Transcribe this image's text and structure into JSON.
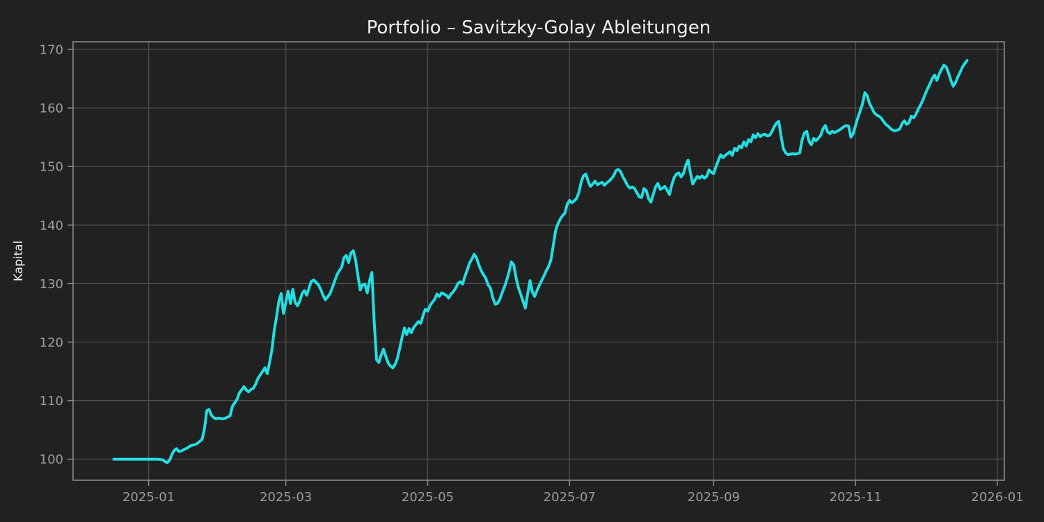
{
  "chart_data": {
    "type": "line",
    "title": "Portfolio – Savitzky-Golay Ableitungen",
    "ylabel": "Kapital",
    "xlabel": "",
    "series_name": "Kapital",
    "grid": true,
    "legend": "none",
    "colors": {
      "background": "#212121",
      "line": "#21dfe3",
      "grid": "#4e4e4e",
      "spine": "#8c8c8c",
      "tick_text": "#9c9c9c",
      "title_text": "#f0f0f0"
    },
    "x_epoch": "2025-01-01",
    "x_unit": "days_since_epoch",
    "x_domain": [
      -32.5,
      368
    ],
    "y_domain": [
      96.4,
      171.3
    ],
    "x_ticks": [
      {
        "day": 0,
        "label": "2025-01"
      },
      {
        "day": 59,
        "label": "2025-03"
      },
      {
        "day": 120,
        "label": "2025-05"
      },
      {
        "day": 181,
        "label": "2025-07"
      },
      {
        "day": 243,
        "label": "2025-09"
      },
      {
        "day": 304,
        "label": "2025-11"
      },
      {
        "day": 365,
        "label": "2026-01"
      }
    ],
    "y_ticks": [
      100,
      110,
      120,
      130,
      140,
      150,
      160,
      170
    ],
    "points": [
      [
        -15,
        100
      ],
      [
        -13,
        100
      ],
      [
        -10,
        100
      ],
      [
        -7,
        100
      ],
      [
        -4,
        100
      ],
      [
        -1,
        100
      ],
      [
        2,
        100
      ],
      [
        4,
        100
      ],
      [
        6,
        99.9
      ],
      [
        7,
        99.6
      ],
      [
        8,
        99.4
      ],
      [
        9,
        99.8
      ],
      [
        10,
        100.8
      ],
      [
        11,
        101.5
      ],
      [
        12,
        101.8
      ],
      [
        13,
        101.3
      ],
      [
        14,
        101.4
      ],
      [
        15,
        101.6
      ],
      [
        17,
        102.0
      ],
      [
        18,
        102.3
      ],
      [
        20,
        102.5
      ],
      [
        21,
        102.7
      ],
      [
        23,
        103.4
      ],
      [
        24,
        105.2
      ],
      [
        25,
        108.3
      ],
      [
        26,
        108.5
      ],
      [
        27,
        107.5
      ],
      [
        28,
        107.1
      ],
      [
        29,
        106.9
      ],
      [
        30,
        107.0
      ],
      [
        32,
        106.9
      ],
      [
        33,
        107.0
      ],
      [
        35,
        107.4
      ],
      [
        36,
        109.0
      ],
      [
        38,
        110.2
      ],
      [
        39,
        111.3
      ],
      [
        41,
        112.4
      ],
      [
        42,
        111.8
      ],
      [
        43,
        111.5
      ],
      [
        44,
        111.9
      ],
      [
        45,
        112.1
      ],
      [
        46,
        112.8
      ],
      [
        47,
        113.8
      ],
      [
        49,
        115.0
      ],
      [
        50,
        115.6
      ],
      [
        51,
        114.6
      ],
      [
        52,
        116.5
      ],
      [
        53,
        118.6
      ],
      [
        54,
        122.0
      ],
      [
        55,
        124.3
      ],
      [
        56,
        127.0
      ],
      [
        57,
        128.3
      ],
      [
        58,
        124.9
      ],
      [
        59,
        126.8
      ],
      [
        60,
        128.7
      ],
      [
        61,
        126.6
      ],
      [
        62,
        129.0
      ],
      [
        63,
        126.8
      ],
      [
        64,
        126.2
      ],
      [
        65,
        127.0
      ],
      [
        66,
        128.3
      ],
      [
        67,
        128.8
      ],
      [
        68,
        128.0
      ],
      [
        69,
        129.3
      ],
      [
        70,
        130.4
      ],
      [
        71,
        130.6
      ],
      [
        72,
        130.2
      ],
      [
        73,
        129.8
      ],
      [
        74,
        129.0
      ],
      [
        75,
        128.0
      ],
      [
        76,
        127.2
      ],
      [
        77,
        127.7
      ],
      [
        78,
        128.3
      ],
      [
        79,
        129.3
      ],
      [
        80,
        130.4
      ],
      [
        81,
        131.5
      ],
      [
        82,
        132.2
      ],
      [
        83,
        132.8
      ],
      [
        84,
        134.4
      ],
      [
        85,
        134.8
      ],
      [
        86,
        133.6
      ],
      [
        87,
        135.2
      ],
      [
        88,
        135.6
      ],
      [
        89,
        134.0
      ],
      [
        90,
        131.3
      ],
      [
        91,
        128.9
      ],
      [
        92,
        129.8
      ],
      [
        93,
        129.9
      ],
      [
        94,
        128.4
      ],
      [
        95,
        130.5
      ],
      [
        96,
        131.9
      ],
      [
        97,
        123.5
      ],
      [
        98,
        117.0
      ],
      [
        99,
        116.5
      ],
      [
        100,
        117.8
      ],
      [
        101,
        118.8
      ],
      [
        102,
        117.6
      ],
      [
        103,
        116.4
      ],
      [
        104,
        115.9
      ],
      [
        105,
        115.6
      ],
      [
        106,
        116.2
      ],
      [
        107,
        117.2
      ],
      [
        108,
        119.0
      ],
      [
        109,
        120.8
      ],
      [
        110,
        122.4
      ],
      [
        111,
        121.3
      ],
      [
        112,
        122.3
      ],
      [
        113,
        121.6
      ],
      [
        114,
        122.5
      ],
      [
        115,
        123.0
      ],
      [
        116,
        123.5
      ],
      [
        117,
        123.2
      ],
      [
        118,
        124.5
      ],
      [
        119,
        125.6
      ],
      [
        120,
        125.3
      ],
      [
        121,
        126.2
      ],
      [
        122,
        126.8
      ],
      [
        123,
        127.3
      ],
      [
        124,
        128.2
      ],
      [
        125,
        127.8
      ],
      [
        126,
        128.4
      ],
      [
        127,
        128.2
      ],
      [
        128,
        128.0
      ],
      [
        129,
        127.5
      ],
      [
        130,
        128.2
      ],
      [
        131,
        128.6
      ],
      [
        132,
        129.2
      ],
      [
        133,
        130.0
      ],
      [
        134,
        130.3
      ],
      [
        135,
        129.9
      ],
      [
        136,
        131.2
      ],
      [
        137,
        132.3
      ],
      [
        138,
        133.5
      ],
      [
        139,
        134.2
      ],
      [
        140,
        135.0
      ],
      [
        141,
        134.4
      ],
      [
        142,
        133.2
      ],
      [
        143,
        132.2
      ],
      [
        144,
        131.5
      ],
      [
        145,
        130.9
      ],
      [
        146,
        129.8
      ],
      [
        147,
        129.2
      ],
      [
        148,
        127.6
      ],
      [
        149,
        126.5
      ],
      [
        150,
        126.6
      ],
      [
        151,
        127.3
      ],
      [
        152,
        128.4
      ],
      [
        153,
        129.4
      ],
      [
        154,
        130.6
      ],
      [
        155,
        132.0
      ],
      [
        156,
        133.7
      ],
      [
        157,
        133.2
      ],
      [
        158,
        131.0
      ],
      [
        159,
        129.3
      ],
      [
        160,
        128.2
      ],
      [
        161,
        127.0
      ],
      [
        162,
        125.8
      ],
      [
        163,
        128.2
      ],
      [
        164,
        130.5
      ],
      [
        165,
        128.6
      ],
      [
        166,
        127.8
      ],
      [
        167,
        128.8
      ],
      [
        168,
        129.7
      ],
      [
        169,
        130.5
      ],
      [
        170,
        131.3
      ],
      [
        171,
        132.2
      ],
      [
        172,
        132.9
      ],
      [
        173,
        134.0
      ],
      [
        174,
        136.5
      ],
      [
        175,
        139.0
      ],
      [
        176,
        140.2
      ],
      [
        177,
        141.0
      ],
      [
        178,
        141.6
      ],
      [
        179,
        142.0
      ],
      [
        180,
        143.5
      ],
      [
        181,
        144.2
      ],
      [
        182,
        143.8
      ],
      [
        183,
        144.1
      ],
      [
        184,
        144.5
      ],
      [
        185,
        145.5
      ],
      [
        186,
        147.3
      ],
      [
        187,
        148.4
      ],
      [
        188,
        148.7
      ],
      [
        189,
        147.5
      ],
      [
        190,
        146.6
      ],
      [
        191,
        147.0
      ],
      [
        192,
        147.5
      ],
      [
        193,
        146.9
      ],
      [
        194,
        147.1
      ],
      [
        195,
        147.3
      ],
      [
        196,
        146.8
      ],
      [
        197,
        147.2
      ],
      [
        198,
        147.5
      ],
      [
        199,
        147.9
      ],
      [
        200,
        148.4
      ],
      [
        201,
        149.3
      ],
      [
        202,
        149.5
      ],
      [
        203,
        149.1
      ],
      [
        204,
        148.2
      ],
      [
        205,
        147.5
      ],
      [
        206,
        146.7
      ],
      [
        207,
        146.3
      ],
      [
        208,
        146.5
      ],
      [
        209,
        146.2
      ],
      [
        210,
        145.5
      ],
      [
        211,
        144.8
      ],
      [
        212,
        144.7
      ],
      [
        213,
        146.2
      ],
      [
        214,
        145.9
      ],
      [
        215,
        144.5
      ],
      [
        216,
        143.9
      ],
      [
        217,
        145.2
      ],
      [
        218,
        146.5
      ],
      [
        219,
        147.1
      ],
      [
        220,
        146.1
      ],
      [
        221,
        146.3
      ],
      [
        222,
        146.6
      ],
      [
        223,
        145.9
      ],
      [
        224,
        145.2
      ],
      [
        225,
        146.9
      ],
      [
        226,
        148.1
      ],
      [
        227,
        148.7
      ],
      [
        228,
        148.9
      ],
      [
        229,
        148.2
      ],
      [
        230,
        148.8
      ],
      [
        231,
        150.2
      ],
      [
        232,
        151.1
      ],
      [
        233,
        148.9
      ],
      [
        234,
        147.0
      ],
      [
        235,
        147.7
      ],
      [
        236,
        148.3
      ],
      [
        237,
        148.0
      ],
      [
        238,
        148.4
      ],
      [
        239,
        148.0
      ],
      [
        240,
        148.3
      ],
      [
        241,
        149.4
      ],
      [
        242,
        149.0
      ],
      [
        243,
        148.8
      ],
      [
        244,
        150.0
      ],
      [
        245,
        151.0
      ],
      [
        246,
        152.0
      ],
      [
        247,
        151.5
      ],
      [
        248,
        151.9
      ],
      [
        250,
        152.5
      ],
      [
        251,
        151.9
      ],
      [
        252,
        153.1
      ],
      [
        253,
        152.7
      ],
      [
        254,
        153.5
      ],
      [
        255,
        153.2
      ],
      [
        256,
        154.2
      ],
      [
        257,
        153.5
      ],
      [
        258,
        154.6
      ],
      [
        259,
        154.2
      ],
      [
        260,
        155.4
      ],
      [
        261,
        154.9
      ],
      [
        262,
        155.6
      ],
      [
        263,
        155.1
      ],
      [
        264,
        155.4
      ],
      [
        265,
        155.5
      ],
      [
        266,
        155.2
      ],
      [
        267,
        155.3
      ],
      [
        268,
        155.9
      ],
      [
        269,
        156.8
      ],
      [
        270,
        157.4
      ],
      [
        271,
        157.7
      ],
      [
        272,
        155.1
      ],
      [
        273,
        153.0
      ],
      [
        274,
        152.3
      ],
      [
        275,
        152.0
      ],
      [
        276,
        152.1
      ],
      [
        277,
        152.2
      ],
      [
        278,
        152.1
      ],
      [
        279,
        152.2
      ],
      [
        280,
        152.3
      ],
      [
        281,
        154.5
      ],
      [
        282,
        155.7
      ],
      [
        283,
        156.0
      ],
      [
        284,
        154.3
      ],
      [
        285,
        153.7
      ],
      [
        286,
        154.8
      ],
      [
        287,
        154.4
      ],
      [
        288,
        154.8
      ],
      [
        289,
        155.3
      ],
      [
        290,
        156.4
      ],
      [
        291,
        157.0
      ],
      [
        292,
        155.9
      ],
      [
        293,
        155.6
      ],
      [
        294,
        156.0
      ],
      [
        295,
        155.8
      ],
      [
        296,
        156.0
      ],
      [
        297,
        156.2
      ],
      [
        298,
        156.5
      ],
      [
        299,
        156.8
      ],
      [
        300,
        157.0
      ],
      [
        301,
        156.9
      ],
      [
        302,
        155.0
      ],
      [
        303,
        155.6
      ],
      [
        304,
        157.0
      ],
      [
        305,
        158.3
      ],
      [
        306,
        159.5
      ],
      [
        307,
        160.7
      ],
      [
        308,
        162.6
      ],
      [
        309,
        162.1
      ],
      [
        310,
        160.8
      ],
      [
        311,
        160.0
      ],
      [
        312,
        159.2
      ],
      [
        313,
        158.8
      ],
      [
        314,
        158.6
      ],
      [
        315,
        158.3
      ],
      [
        316,
        157.7
      ],
      [
        317,
        157.2
      ],
      [
        318,
        156.9
      ],
      [
        319,
        156.5
      ],
      [
        320,
        156.2
      ],
      [
        321,
        156.1
      ],
      [
        322,
        156.2
      ],
      [
        323,
        156.4
      ],
      [
        324,
        157.3
      ],
      [
        325,
        157.8
      ],
      [
        326,
        157.2
      ],
      [
        327,
        157.5
      ],
      [
        328,
        158.6
      ],
      [
        329,
        158.3
      ],
      [
        330,
        158.9
      ],
      [
        331,
        159.8
      ],
      [
        332,
        160.5
      ],
      [
        333,
        161.4
      ],
      [
        334,
        162.4
      ],
      [
        335,
        163.3
      ],
      [
        336,
        164.1
      ],
      [
        337,
        165.0
      ],
      [
        338,
        165.6
      ],
      [
        339,
        164.7
      ],
      [
        340,
        165.8
      ],
      [
        341,
        166.6
      ],
      [
        342,
        167.3
      ],
      [
        343,
        167.0
      ],
      [
        344,
        166.0
      ],
      [
        345,
        164.7
      ],
      [
        346,
        163.7
      ],
      [
        347,
        164.3
      ],
      [
        348,
        165.3
      ],
      [
        349,
        166.1
      ],
      [
        350,
        167.0
      ],
      [
        351,
        167.6
      ],
      [
        352,
        168.1
      ]
    ]
  }
}
